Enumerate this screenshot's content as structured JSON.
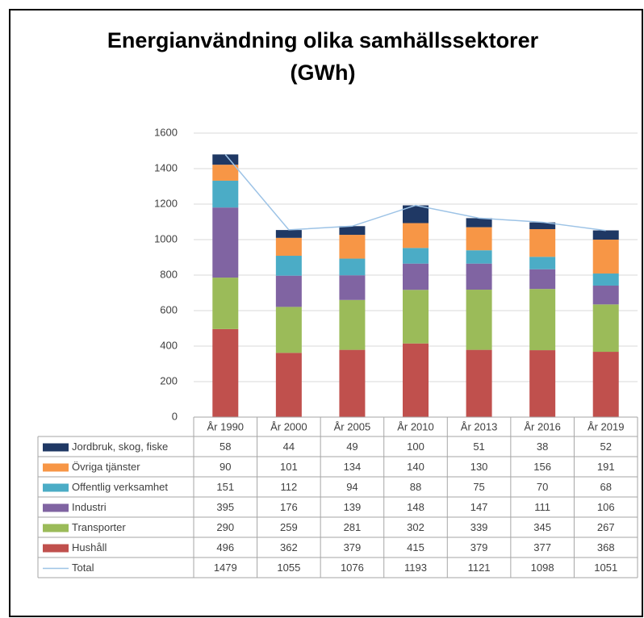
{
  "chart_data": {
    "type": "bar",
    "stacked": true,
    "title": "Energianvändning olika samhällssektorer",
    "unit": "(GWh)",
    "categories": [
      "År 1990",
      "År 2000",
      "År 2005",
      "År 2010",
      "År 2013",
      "År 2016",
      "År 2019"
    ],
    "series": [
      {
        "name": "Jordbruk, skog, fiske",
        "color": "#1f3864",
        "values": [
          58,
          44,
          49,
          100,
          51,
          38,
          52
        ]
      },
      {
        "name": "Övriga tjänster",
        "color": "#f79646",
        "values": [
          90,
          101,
          134,
          140,
          130,
          156,
          191
        ]
      },
      {
        "name": "Offentlig verksamhet",
        "color": "#4bacc6",
        "values": [
          151,
          112,
          94,
          88,
          75,
          70,
          68
        ]
      },
      {
        "name": "Industri",
        "color": "#8064a2",
        "values": [
          395,
          176,
          139,
          148,
          147,
          111,
          106
        ]
      },
      {
        "name": "Transporter",
        "color": "#9bbb59",
        "values": [
          290,
          259,
          281,
          302,
          339,
          345,
          267
        ]
      },
      {
        "name": "Hushåll",
        "color": "#c0504d",
        "values": [
          496,
          362,
          379,
          415,
          379,
          377,
          368
        ]
      },
      {
        "name": "Total",
        "color": "#9dc3e6",
        "type": "line",
        "values": [
          1479,
          1055,
          1076,
          1193,
          1121,
          1098,
          1051
        ]
      }
    ],
    "ylim": [
      0,
      1600
    ],
    "yticks": [
      0,
      200,
      400,
      600,
      800,
      1000,
      1200,
      1400,
      1600
    ],
    "grid": true
  }
}
